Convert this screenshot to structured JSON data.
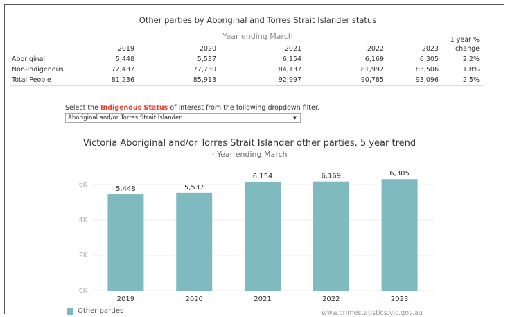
{
  "table": {
    "title": "Other parties by Aboriginal and Torres Strait Islander status",
    "subtitle": "Year ending March",
    "years": [
      "2019",
      "2020",
      "2021",
      "2022",
      "2023"
    ],
    "pct_header_line1": "1 year %",
    "pct_header_line2": "change",
    "rows": [
      {
        "label": "Aboriginal",
        "values": [
          "5,448",
          "5,537",
          "6,154",
          "6,169",
          "6,305"
        ],
        "change": "2.2%"
      },
      {
        "label": "Non-Indigenous",
        "values": [
          "72,437",
          "77,730",
          "84,137",
          "81,992",
          "83,506"
        ],
        "change": "1.8%"
      },
      {
        "label": "Total People",
        "values": [
          "81,236",
          "85,913",
          "92,997",
          "90,785",
          "93,096"
        ],
        "change": "2.5%"
      }
    ]
  },
  "filter": {
    "label_prefix": "Select the ",
    "label_highlight": "Indigenous Status",
    "label_suffix": " of interest from the following dropdown filter.",
    "selected": "Aboriginal and/or Torres Strait Islander",
    "arrow": "▼"
  },
  "chart_data": {
    "type": "bar",
    "title": "Victoria Aboriginal and/or Torres Strait Islander other parties, 5 year trend",
    "subtitle": "- Year ending March",
    "categories": [
      "2019",
      "2020",
      "2021",
      "2022",
      "2023"
    ],
    "series": [
      {
        "name": "Other parties",
        "values": [
          5448,
          5537,
          6154,
          6169,
          6305
        ]
      }
    ],
    "data_labels": [
      "5,448",
      "5,537",
      "6,154",
      "6,169",
      "6,305"
    ],
    "yticks": [
      0,
      2000,
      4000,
      6000
    ],
    "ytick_labels": [
      "0K",
      "2K",
      "4K",
      "6K"
    ],
    "ylim": [
      0,
      6300
    ],
    "grid": true,
    "legend": "bottom-left",
    "bar_color": "#7fbac0"
  },
  "source": "www.crimestatistics.vic.gov.au"
}
